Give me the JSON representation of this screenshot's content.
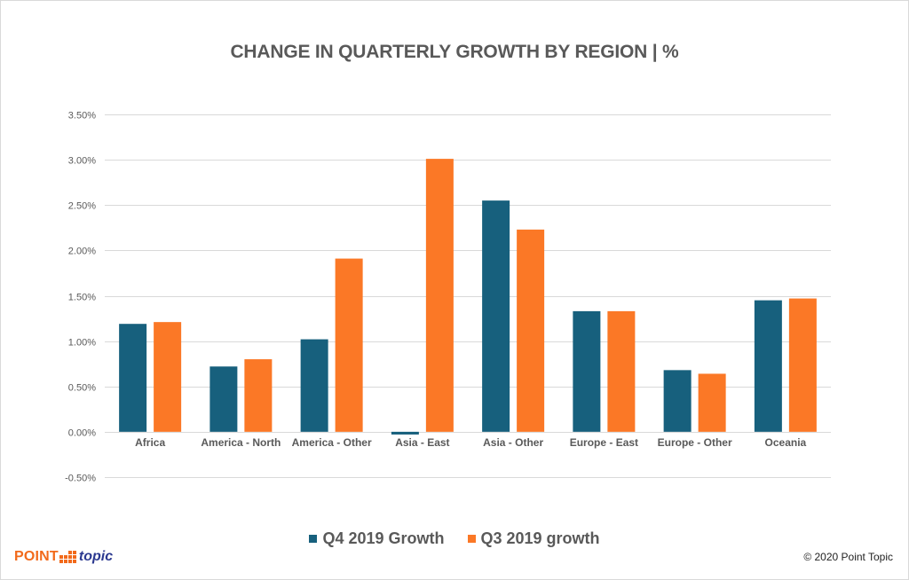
{
  "chart_data": {
    "type": "bar",
    "title": "CHANGE IN QUARTERLY GROWTH BY REGION | %",
    "xlabel": "",
    "ylabel": "",
    "categories": [
      "Africa",
      "America - North",
      "America - Other",
      "Asia - East",
      "Asia - Other",
      "Europe - East",
      "Europe - Other",
      "Oceania"
    ],
    "series": [
      {
        "name": "Q4 2019 Growth",
        "color": "#17607d",
        "values": [
          1.19,
          0.72,
          1.02,
          -0.03,
          2.55,
          1.33,
          0.68,
          1.45
        ]
      },
      {
        "name": "Q3 2019 growth",
        "color": "#fb7826",
        "values": [
          1.21,
          0.8,
          1.91,
          3.01,
          2.23,
          1.33,
          0.64,
          1.47
        ]
      }
    ],
    "ylim": [
      -0.5,
      3.5
    ],
    "yticks": [
      -0.5,
      0.0,
      0.5,
      1.0,
      1.5,
      2.0,
      2.5,
      3.0,
      3.5
    ],
    "ytick_labels": [
      "-0.50%",
      "0.00%",
      "0.50%",
      "1.00%",
      "1.50%",
      "2.00%",
      "2.50%",
      "3.00%",
      "3.50%"
    ],
    "unit": "%",
    "grid": true,
    "legend_position": "bottom-center"
  },
  "footer": {
    "logo_point": "POINT",
    "logo_topic": "topic",
    "copyright": "© 2020 Point Topic"
  },
  "colors": {
    "grid": "#d9d9d9",
    "text": "#595959",
    "brand_orange": "#f26a1b",
    "brand_blue": "#2b3990"
  }
}
